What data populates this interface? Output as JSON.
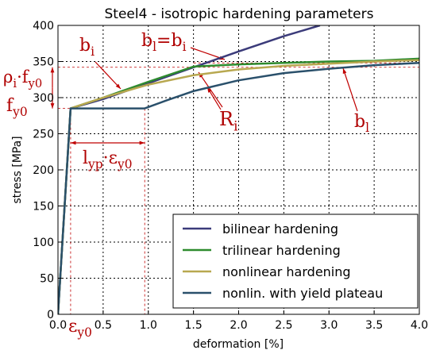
{
  "chart_data": {
    "type": "line",
    "title": "Steel4 - isotropic hardening parameters",
    "xlabel": "deformation [%]",
    "ylabel": "stress [MPa]",
    "xlim": [
      0,
      4
    ],
    "ylim": [
      0,
      400
    ],
    "xticks": [
      0,
      0.5,
      1,
      1.5,
      2,
      2.5,
      3,
      3.5,
      4
    ],
    "xtick_labels": [
      "0.0",
      "0.5",
      "1.0",
      "1.5",
      "2.0",
      "2.5",
      "3.0",
      "3.5",
      "4.0"
    ],
    "yticks": [
      0,
      50,
      100,
      150,
      200,
      250,
      300,
      350,
      400
    ],
    "ytick_labels": [
      "0",
      "50",
      "100",
      "150",
      "200",
      "250",
      "300",
      "350",
      "400"
    ],
    "grid": true,
    "legend_position": "bottom-right",
    "series": [
      {
        "name": "bilinear hardening",
        "color": "#3b3b7a",
        "points": [
          [
            0,
            0
          ],
          [
            0.14,
            285
          ],
          [
            0.5,
            298
          ],
          [
            1.0,
            320
          ],
          [
            1.5,
            342
          ],
          [
            2.0,
            364
          ],
          [
            2.5,
            385
          ],
          [
            2.9,
            400
          ]
        ]
      },
      {
        "name": "trilinear hardening",
        "color": "#2e8b2e",
        "points": [
          [
            0,
            0
          ],
          [
            0.14,
            285
          ],
          [
            0.5,
            300
          ],
          [
            1.0,
            322
          ],
          [
            1.5,
            343
          ],
          [
            2.0,
            346
          ],
          [
            2.5,
            348
          ],
          [
            3.0,
            350
          ],
          [
            3.5,
            351
          ],
          [
            4.0,
            354
          ]
        ]
      },
      {
        "name": "nonlinear hardening",
        "color": "#b8a850",
        "points": [
          [
            0,
            0
          ],
          [
            0.14,
            285
          ],
          [
            0.5,
            300
          ],
          [
            1.0,
            318
          ],
          [
            1.5,
            331
          ],
          [
            2.0,
            339
          ],
          [
            2.5,
            344
          ],
          [
            3.0,
            347
          ],
          [
            3.5,
            350
          ],
          [
            4.0,
            352
          ]
        ]
      },
      {
        "name": "nonlin. with yield plateau",
        "color": "#2a506b",
        "points": [
          [
            0,
            0
          ],
          [
            0.14,
            285
          ],
          [
            0.4,
            285
          ],
          [
            0.96,
            285
          ],
          [
            1.2,
            296
          ],
          [
            1.5,
            309
          ],
          [
            2.0,
            324
          ],
          [
            2.5,
            334
          ],
          [
            3.0,
            340
          ],
          [
            3.5,
            345
          ],
          [
            4.0,
            348
          ]
        ]
      }
    ],
    "annotations": [
      {
        "id": "bi_label",
        "text": "b",
        "sub": "i"
      },
      {
        "id": "bl_eq_bi",
        "text": "b",
        "sub": "l",
        "rest": "=b",
        "sub2": "i"
      },
      {
        "id": "rho_fy0",
        "text": "ρ",
        "sub": "i",
        "rest": "·f",
        "sub2": "y0"
      },
      {
        "id": "fy0",
        "text": "f",
        "sub": "y0"
      },
      {
        "id": "ri",
        "text": "R",
        "sub": "i"
      },
      {
        "id": "bl",
        "text": "b",
        "sub": "l"
      },
      {
        "id": "lyp",
        "text": "l",
        "sub": "yp",
        "rest": "·ε",
        "sub2": "y0"
      },
      {
        "id": "eps_y0",
        "text": "ε",
        "sub": "y0"
      }
    ]
  }
}
